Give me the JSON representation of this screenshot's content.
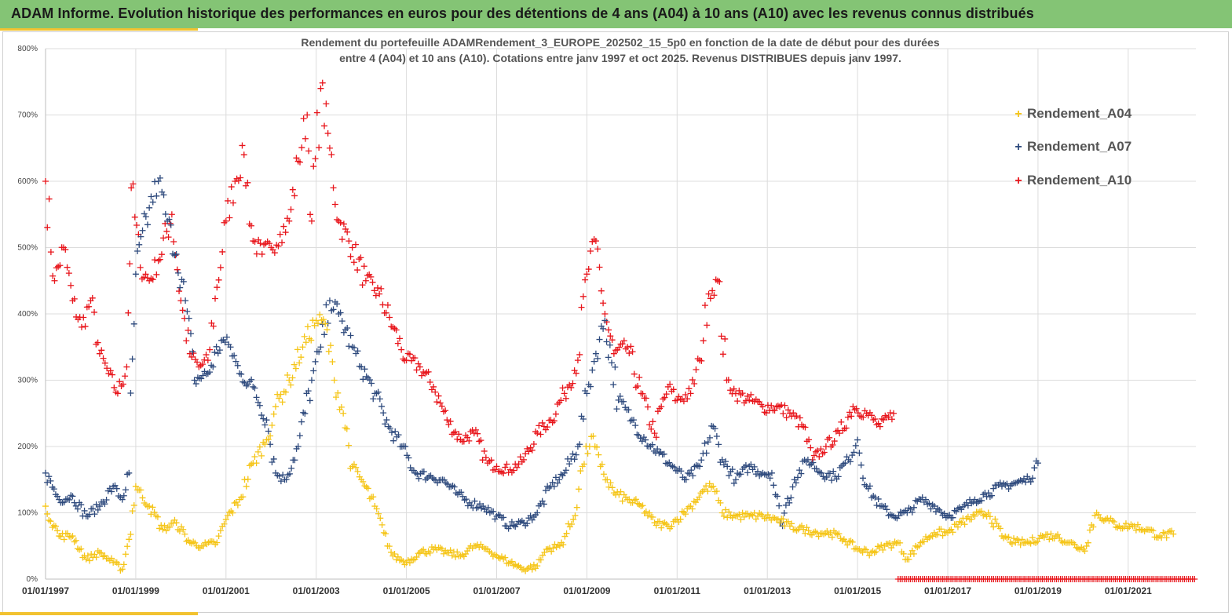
{
  "header": {
    "title": "ADAM Informe. Evolution historique des performances en euros pour des détentions de 4 ans (A04) à 10 ans (A10) avec les revenus connus distribués"
  },
  "colors": {
    "banner": "#84c475",
    "accent": "#f2c230",
    "A04": "#f5c518",
    "A07": "#2e4a7d",
    "A10": "#e8151b"
  },
  "chart_data": {
    "type": "scatter",
    "title_line1": "Rendement du portefeuille ADAMRendement_3_EUROPE_202502_15_5p0  en fonction de la date de début pour des durées",
    "title_line2": "entre 4 (A04) et 10 ans (A10). Cotations entre janv 1997 et oct 2025. Revenus DISTRIBUES depuis janv 1997.",
    "xlabel": "",
    "ylabel": "",
    "xlim": [
      1997.0,
      2022.5
    ],
    "ylim": [
      0,
      800
    ],
    "grid": true,
    "legend_position": "top-right",
    "y_ticks": [
      "0%",
      "100%",
      "200%",
      "300%",
      "400%",
      "500%",
      "600%",
      "700%",
      "800%"
    ],
    "x_ticks": [
      "01/01/1997",
      "01/01/1999",
      "01/01/2001",
      "01/01/2003",
      "01/01/2005",
      "01/01/2007",
      "01/01/2009",
      "01/01/2011",
      "01/01/2013",
      "01/01/2015",
      "01/01/2017",
      "01/01/2019",
      "01/01/2021"
    ],
    "marker": "+",
    "series": [
      {
        "name": "Rendement_A04",
        "x": [
          1997.0,
          1997.3,
          1997.6,
          1997.9,
          1998.2,
          1998.5,
          1998.7,
          1998.85,
          1999.0,
          1999.3,
          1999.6,
          1999.9,
          2000.2,
          2000.5,
          2000.8,
          2001.0,
          2001.3,
          2001.6,
          2001.9,
          2002.1,
          2002.4,
          2002.7,
          2003.0,
          2003.2,
          2003.4,
          2003.6,
          2003.8,
          2004.0,
          2004.3,
          2004.5,
          2004.7,
          2005.0,
          2005.3,
          2005.6,
          2005.9,
          2006.2,
          2006.5,
          2006.8,
          2007.0,
          2007.3,
          2007.6,
          2007.9,
          2008.1,
          2008.4,
          2008.7,
          2008.9,
          2009.1,
          2009.3,
          2009.6,
          2009.9,
          2010.2,
          2010.5,
          2010.8,
          2011.0,
          2011.3,
          2011.6,
          2011.8,
          2012.0,
          2012.3,
          2012.6,
          2012.9,
          2013.2,
          2013.5,
          2013.8,
          2014.1,
          2014.4,
          2014.7,
          2015.0,
          2015.3,
          2015.6,
          2015.9,
          2016.1,
          2016.4,
          2016.7,
          2017.0,
          2017.3,
          2017.6,
          2017.9,
          2018.2,
          2018.5,
          2018.8,
          2019.1,
          2019.4,
          2019.7,
          2020.0,
          2020.3,
          2020.5,
          2020.8,
          2021.1,
          2021.4,
          2021.7,
          2022.0
        ],
        "y": [
          110,
          65,
          65,
          30,
          40,
          25,
          15,
          60,
          140,
          110,
          75,
          85,
          55,
          50,
          55,
          90,
          120,
          175,
          210,
          260,
          300,
          350,
          390,
          385,
          300,
          250,
          170,
          150,
          110,
          70,
          35,
          25,
          40,
          45,
          40,
          35,
          50,
          45,
          35,
          25,
          15,
          20,
          45,
          50,
          90,
          170,
          215,
          170,
          130,
          120,
          110,
          85,
          80,
          90,
          110,
          135,
          140,
          100,
          95,
          95,
          95,
          90,
          80,
          75,
          70,
          70,
          60,
          45,
          40,
          50,
          55,
          30,
          55,
          70,
          70,
          85,
          95,
          100,
          65,
          55,
          55,
          65,
          65,
          55,
          45,
          100,
          90,
          80,
          80,
          75,
          65,
          68
        ]
      },
      {
        "name": "Rendement_A07",
        "x": [
          1997.0,
          1997.3,
          1997.6,
          1997.9,
          1998.2,
          1998.5,
          1998.7,
          1998.85,
          1999.0,
          1999.3,
          1999.5,
          1999.7,
          1999.9,
          2000.1,
          2000.3,
          2000.6,
          2000.9,
          2001.1,
          2001.3,
          2001.6,
          2001.9,
          2002.1,
          2002.3,
          2002.6,
          2002.9,
          2003.1,
          2003.3,
          2003.5,
          2003.8,
          2004.0,
          2004.3,
          2004.6,
          2004.9,
          2005.2,
          2005.5,
          2005.8,
          2006.1,
          2006.4,
          2006.7,
          2007.0,
          2007.3,
          2007.6,
          2007.9,
          2008.2,
          2008.5,
          2008.8,
          2009.0,
          2009.2,
          2009.4,
          2009.7,
          2010.0,
          2010.3,
          2010.6,
          2010.9,
          2011.2,
          2011.5,
          2011.8,
          2012.0,
          2012.3,
          2012.6,
          2012.9,
          2013.1,
          2013.3,
          2013.6,
          2013.9,
          2014.2,
          2014.5,
          2014.8,
          2015.0,
          2015.2,
          2015.5,
          2015.8,
          2016.1,
          2016.4,
          2016.7,
          2017.0,
          2017.3,
          2017.6,
          2017.9,
          2018.2,
          2018.5,
          2018.8,
          2019.0
        ],
        "y": [
          160,
          120,
          125,
          95,
          110,
          140,
          120,
          160,
          460,
          560,
          600,
          540,
          490,
          420,
          300,
          310,
          360,
          350,
          310,
          290,
          240,
          160,
          150,
          200,
          300,
          350,
          420,
          400,
          350,
          320,
          280,
          230,
          200,
          160,
          155,
          150,
          130,
          115,
          110,
          95,
          80,
          85,
          100,
          140,
          160,
          200,
          280,
          340,
          390,
          270,
          240,
          210,
          190,
          170,
          150,
          170,
          230,
          180,
          150,
          170,
          160,
          160,
          85,
          150,
          180,
          160,
          155,
          180,
          210,
          140,
          110,
          95,
          100,
          120,
          110,
          95,
          105,
          120,
          130,
          140,
          145,
          150,
          175
        ]
      },
      {
        "name": "Rendement_A10",
        "x": [
          1997.0,
          1997.2,
          1997.4,
          1997.6,
          1997.8,
          1998.0,
          1998.2,
          1998.4,
          1998.6,
          1998.8,
          1998.9,
          1999.1,
          1999.3,
          1999.5,
          1999.8,
          2000.0,
          2000.2,
          2000.4,
          2000.6,
          2000.8,
          2001.0,
          2001.2,
          2001.4,
          2001.6,
          2001.8,
          2002.0,
          2002.2,
          2002.4,
          2002.6,
          2002.8,
          2002.9,
          2003.1,
          2003.3,
          2003.5,
          2003.8,
          2004.1,
          2004.4,
          2004.7,
          2005.0,
          2005.3,
          2005.6,
          2005.9,
          2006.2,
          2006.5,
          2006.8,
          2007.0,
          2007.3,
          2007.6,
          2007.9,
          2008.2,
          2008.5,
          2008.8,
          2009.0,
          2009.2,
          2009.4,
          2009.6,
          2009.9,
          2010.2,
          2010.5,
          2010.8,
          2011.0,
          2011.3,
          2011.5,
          2011.7,
          2011.9,
          2012.1,
          2012.3,
          2012.6,
          2012.9,
          2013.2,
          2013.5,
          2013.8,
          2014.0,
          2014.3,
          2014.6,
          2014.9,
          2015.2,
          2015.5,
          2015.8
        ],
        "y": [
          600,
          450,
          500,
          420,
          380,
          420,
          340,
          310,
          280,
          320,
          590,
          470,
          450,
          480,
          550,
          420,
          340,
          320,
          330,
          440,
          540,
          600,
          640,
          510,
          490,
          500,
          520,
          540,
          630,
          700,
          540,
          740,
          650,
          540,
          500,
          450,
          430,
          380,
          330,
          320,
          290,
          240,
          210,
          220,
          175,
          170,
          165,
          180,
          220,
          240,
          280,
          330,
          460,
          510,
          400,
          340,
          350,
          280,
          220,
          290,
          270,
          280,
          330,
          430,
          450,
          300,
          280,
          270,
          260,
          260,
          250,
          230,
          180,
          200,
          220,
          260,
          250,
          230,
          250
        ]
      },
      {
        "name": "Rendement_A10 (baseline)",
        "x_range": [
          2015.9,
          2022.5
        ],
        "y": 0
      }
    ]
  },
  "legend": [
    {
      "label": "Rendement_A04",
      "marker": "+"
    },
    {
      "label": "Rendement_A07",
      "marker": "+"
    },
    {
      "label": "Rendement_A10",
      "marker": "+"
    }
  ]
}
